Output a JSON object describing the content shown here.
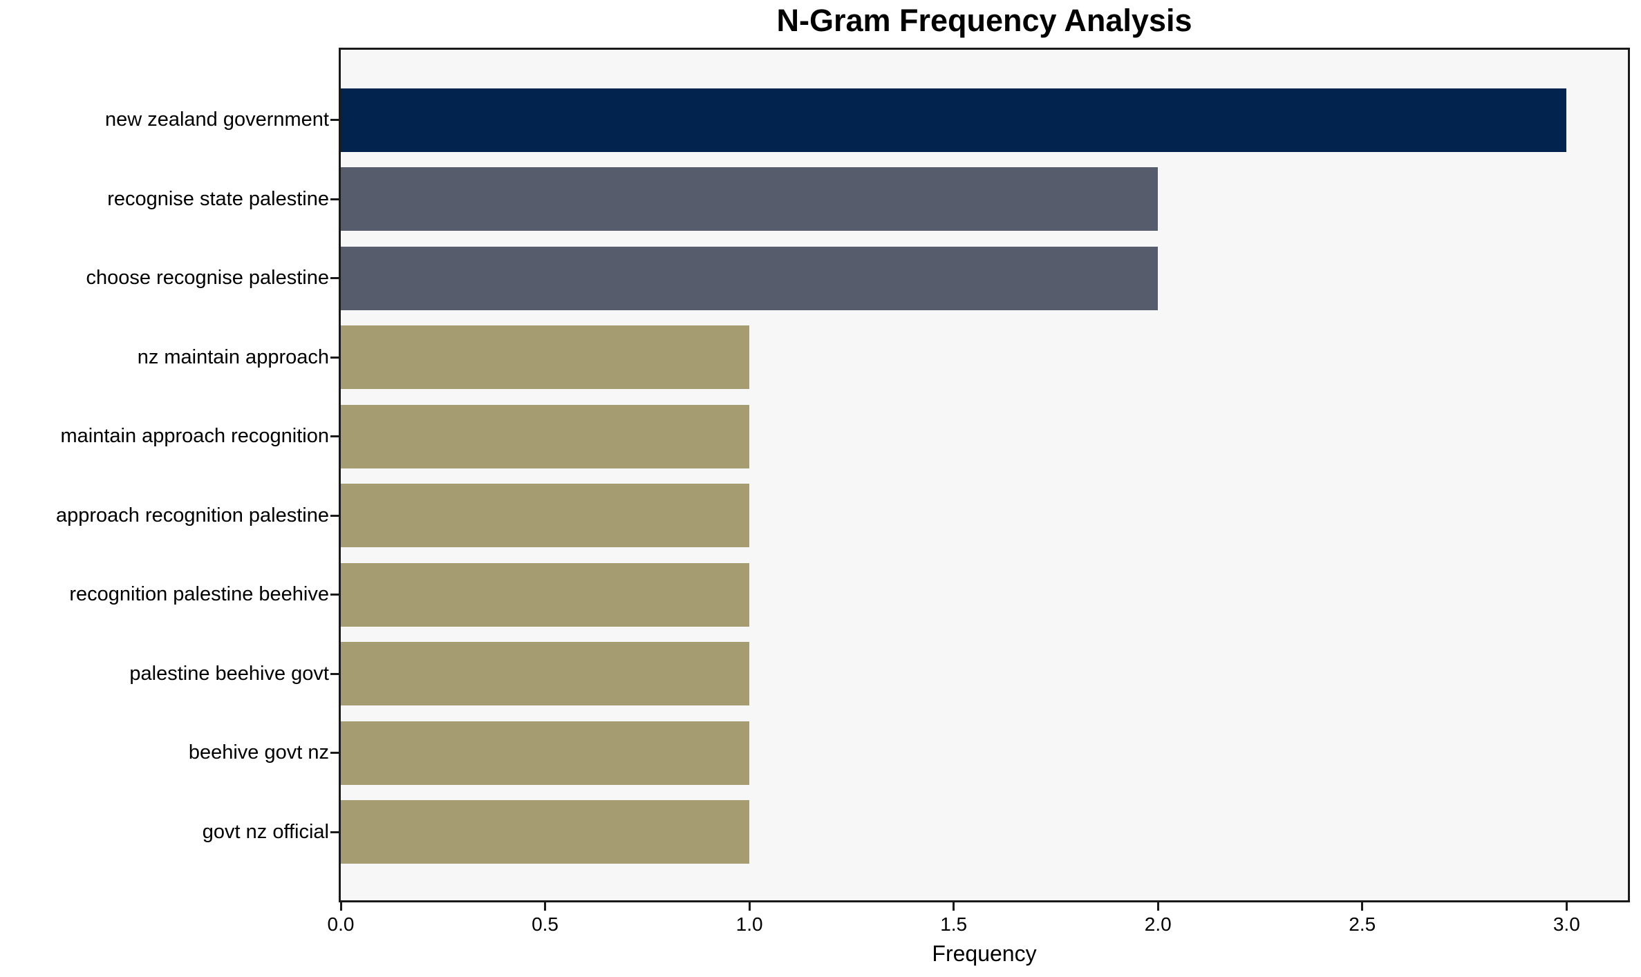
{
  "chart_data": {
    "type": "bar",
    "orientation": "horizontal",
    "title": "N-Gram Frequency Analysis",
    "xlabel": "Frequency",
    "ylabel": "",
    "categories": [
      "new zealand government",
      "recognise state palestine",
      "choose recognise palestine",
      "nz maintain approach",
      "maintain approach recognition",
      "approach recognition palestine",
      "recognition palestine beehive",
      "palestine beehive govt",
      "beehive govt nz",
      "govt nz official"
    ],
    "values": [
      3,
      2,
      2,
      1,
      1,
      1,
      1,
      1,
      1,
      1
    ],
    "bar_colors": [
      "#01234d",
      "#565c6c",
      "#565c6c",
      "#a69c71",
      "#a69c71",
      "#a69c71",
      "#a69c71",
      "#a69c71",
      "#a69c71",
      "#a69c71"
    ],
    "xlim": [
      0,
      3.15
    ],
    "xticks": [
      {
        "value": 0.0,
        "label": "0.0"
      },
      {
        "value": 0.5,
        "label": "0.5"
      },
      {
        "value": 1.0,
        "label": "1.0"
      },
      {
        "value": 1.5,
        "label": "1.5"
      },
      {
        "value": 2.0,
        "label": "2.0"
      },
      {
        "value": 2.5,
        "label": "2.5"
      },
      {
        "value": 3.0,
        "label": "3.0"
      }
    ],
    "grid": false,
    "legend": null,
    "colors": {
      "plot_background": "#f7f7f8",
      "figure_background": "#ffffff",
      "spine": "#1a1a1a",
      "text": "#000000"
    }
  }
}
